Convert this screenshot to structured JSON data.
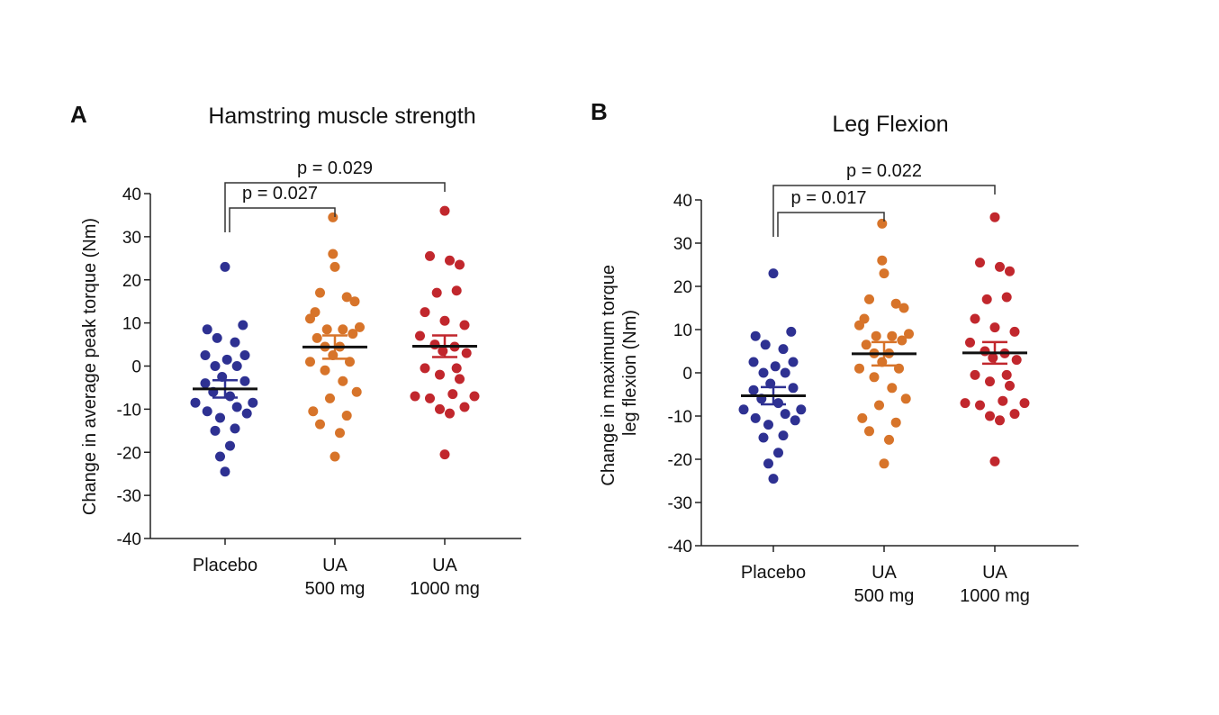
{
  "chart_data": [
    {
      "type": "scatter",
      "panel": "A",
      "title": "Hamstring muscle strength",
      "xlabel": "",
      "ylabel": "Change in average peak torque (Nm)",
      "ylim": [
        -40,
        40
      ],
      "yticks": [
        -40,
        -30,
        -20,
        -10,
        0,
        10,
        20,
        30,
        40
      ],
      "categories": [
        {
          "line1": "Placebo",
          "line2": ""
        },
        {
          "line1": "UA",
          "line2": "500 mg"
        },
        {
          "line1": "UA",
          "line2": "1000 mg"
        }
      ],
      "series": [
        {
          "name": "Placebo",
          "color": "#2e3192",
          "mean": -5.3,
          "sem": 2.0,
          "points": [
            [
              0.0,
              23
            ],
            [
              -0.18,
              8.5
            ],
            [
              0.18,
              9.5
            ],
            [
              -0.08,
              6.5
            ],
            [
              0.1,
              5.5
            ],
            [
              -0.2,
              2.5
            ],
            [
              0.02,
              1.5
            ],
            [
              0.2,
              2.5
            ],
            [
              -0.1,
              0
            ],
            [
              0.12,
              0
            ],
            [
              -0.03,
              -2.5
            ],
            [
              0.2,
              -3.5
            ],
            [
              -0.2,
              -4
            ],
            [
              -0.12,
              -6
            ],
            [
              0.05,
              -7
            ],
            [
              0.28,
              -8.5
            ],
            [
              -0.3,
              -8.5
            ],
            [
              0.12,
              -9.5
            ],
            [
              -0.18,
              -10.5
            ],
            [
              0.22,
              -11
            ],
            [
              -0.05,
              -12
            ],
            [
              0.1,
              -14.5
            ],
            [
              -0.1,
              -15
            ],
            [
              0.05,
              -18.5
            ],
            [
              -0.05,
              -21
            ],
            [
              0.0,
              -24.5
            ]
          ]
        },
        {
          "name": "UA 500 mg",
          "color": "#d7742a",
          "mean": 4.4,
          "sem": 2.7,
          "points": [
            [
              -0.02,
              34.5
            ],
            [
              -0.02,
              26
            ],
            [
              0.0,
              23
            ],
            [
              -0.15,
              17
            ],
            [
              0.12,
              16
            ],
            [
              -0.2,
              12.5
            ],
            [
              0.2,
              15
            ],
            [
              -0.25,
              11
            ],
            [
              0.25,
              9
            ],
            [
              -0.08,
              8.5
            ],
            [
              0.08,
              8.5
            ],
            [
              -0.18,
              6.5
            ],
            [
              0.18,
              7.5
            ],
            [
              -0.1,
              4.5
            ],
            [
              0.05,
              4.5
            ],
            [
              -0.02,
              2.5
            ],
            [
              -0.25,
              1
            ],
            [
              0.15,
              1
            ],
            [
              -0.1,
              -1
            ],
            [
              0.08,
              -3.5
            ],
            [
              0.22,
              -6
            ],
            [
              -0.05,
              -7.5
            ],
            [
              -0.22,
              -10.5
            ],
            [
              0.12,
              -11.5
            ],
            [
              -0.15,
              -13.5
            ],
            [
              0.05,
              -15.5
            ],
            [
              0.0,
              -21
            ]
          ]
        },
        {
          "name": "UA 1000 mg",
          "color": "#c1272d",
          "mean": 4.6,
          "sem": 2.5,
          "points": [
            [
              0.0,
              36
            ],
            [
              -0.15,
              25.5
            ],
            [
              0.05,
              24.5
            ],
            [
              0.15,
              23.5
            ],
            [
              -0.08,
              17
            ],
            [
              0.12,
              17.5
            ],
            [
              -0.2,
              12.5
            ],
            [
              0.0,
              10.5
            ],
            [
              0.2,
              9.5
            ],
            [
              -0.25,
              7
            ],
            [
              -0.1,
              5
            ],
            [
              0.1,
              4.5
            ],
            [
              -0.02,
              3.5
            ],
            [
              0.22,
              3
            ],
            [
              -0.2,
              -0.5
            ],
            [
              0.12,
              -0.5
            ],
            [
              -0.05,
              -2
            ],
            [
              0.15,
              -3
            ],
            [
              -0.3,
              -7
            ],
            [
              -0.15,
              -7.5
            ],
            [
              0.08,
              -6.5
            ],
            [
              0.3,
              -7
            ],
            [
              0.2,
              -9.5
            ],
            [
              -0.05,
              -10
            ],
            [
              0.05,
              -11
            ],
            [
              0.0,
              -20.5
            ]
          ]
        }
      ],
      "significance": [
        {
          "from": 0,
          "to": 1,
          "label": "p = 0.027",
          "level": 1
        },
        {
          "from": 0,
          "to": 2,
          "label": "p = 0.029",
          "level": 2
        }
      ]
    },
    {
      "type": "scatter",
      "panel": "B",
      "title": "Leg Flexion",
      "xlabel": "",
      "ylabel": [
        "Change in maximum torque",
        "leg flexion (Nm)"
      ],
      "ylim": [
        -40,
        40
      ],
      "yticks": [
        -40,
        -30,
        -20,
        -10,
        0,
        10,
        20,
        30,
        40
      ],
      "categories": [
        {
          "line1": "Placebo",
          "line2": ""
        },
        {
          "line1": "UA",
          "line2": "500 mg"
        },
        {
          "line1": "UA",
          "line2": "1000 mg"
        }
      ],
      "series": [
        {
          "name": "Placebo",
          "color": "#2e3192",
          "mean": -5.3,
          "sem": 2.0,
          "points": [
            [
              0.0,
              23
            ],
            [
              -0.18,
              8.5
            ],
            [
              0.18,
              9.5
            ],
            [
              -0.08,
              6.5
            ],
            [
              0.1,
              5.5
            ],
            [
              -0.2,
              2.5
            ],
            [
              0.02,
              1.5
            ],
            [
              0.2,
              2.5
            ],
            [
              -0.1,
              0
            ],
            [
              0.12,
              0
            ],
            [
              -0.03,
              -2.5
            ],
            [
              0.2,
              -3.5
            ],
            [
              -0.2,
              -4
            ],
            [
              -0.12,
              -6
            ],
            [
              0.05,
              -7
            ],
            [
              0.28,
              -8.5
            ],
            [
              -0.3,
              -8.5
            ],
            [
              0.12,
              -9.5
            ],
            [
              -0.18,
              -10.5
            ],
            [
              0.22,
              -11
            ],
            [
              -0.05,
              -12
            ],
            [
              0.1,
              -14.5
            ],
            [
              -0.1,
              -15
            ],
            [
              0.05,
              -18.5
            ],
            [
              -0.05,
              -21
            ],
            [
              0.0,
              -24.5
            ]
          ]
        },
        {
          "name": "UA 500 mg",
          "color": "#d7742a",
          "mean": 4.4,
          "sem": 2.7,
          "points": [
            [
              -0.02,
              34.5
            ],
            [
              -0.02,
              26
            ],
            [
              0.0,
              23
            ],
            [
              -0.15,
              17
            ],
            [
              0.12,
              16
            ],
            [
              -0.2,
              12.5
            ],
            [
              0.2,
              15
            ],
            [
              -0.25,
              11
            ],
            [
              0.25,
              9
            ],
            [
              -0.08,
              8.5
            ],
            [
              0.08,
              8.5
            ],
            [
              -0.18,
              6.5
            ],
            [
              0.18,
              7.5
            ],
            [
              -0.1,
              4.5
            ],
            [
              0.05,
              4.5
            ],
            [
              -0.02,
              2.5
            ],
            [
              -0.25,
              1
            ],
            [
              0.15,
              1
            ],
            [
              -0.1,
              -1
            ],
            [
              0.08,
              -3.5
            ],
            [
              0.22,
              -6
            ],
            [
              -0.05,
              -7.5
            ],
            [
              -0.22,
              -10.5
            ],
            [
              0.12,
              -11.5
            ],
            [
              -0.15,
              -13.5
            ],
            [
              0.05,
              -15.5
            ],
            [
              0.0,
              -21
            ]
          ]
        },
        {
          "name": "UA 1000 mg",
          "color": "#c1272d",
          "mean": 4.6,
          "sem": 2.5,
          "points": [
            [
              0.0,
              36
            ],
            [
              -0.15,
              25.5
            ],
            [
              0.05,
              24.5
            ],
            [
              0.15,
              23.5
            ],
            [
              -0.08,
              17
            ],
            [
              0.12,
              17.5
            ],
            [
              -0.2,
              12.5
            ],
            [
              0.0,
              10.5
            ],
            [
              0.2,
              9.5
            ],
            [
              -0.25,
              7
            ],
            [
              -0.1,
              5
            ],
            [
              0.1,
              4.5
            ],
            [
              -0.02,
              3.5
            ],
            [
              0.22,
              3
            ],
            [
              -0.2,
              -0.5
            ],
            [
              0.12,
              -0.5
            ],
            [
              -0.05,
              -2
            ],
            [
              0.15,
              -3
            ],
            [
              -0.3,
              -7
            ],
            [
              -0.15,
              -7.5
            ],
            [
              0.08,
              -6.5
            ],
            [
              0.3,
              -7
            ],
            [
              0.2,
              -9.5
            ],
            [
              -0.05,
              -10
            ],
            [
              0.05,
              -11
            ],
            [
              0.0,
              -20.5
            ]
          ]
        }
      ],
      "significance": [
        {
          "from": 0,
          "to": 1,
          "label": "p = 0.017",
          "level": 1
        },
        {
          "from": 0,
          "to": 2,
          "label": "p = 0.022",
          "level": 2
        }
      ]
    }
  ]
}
